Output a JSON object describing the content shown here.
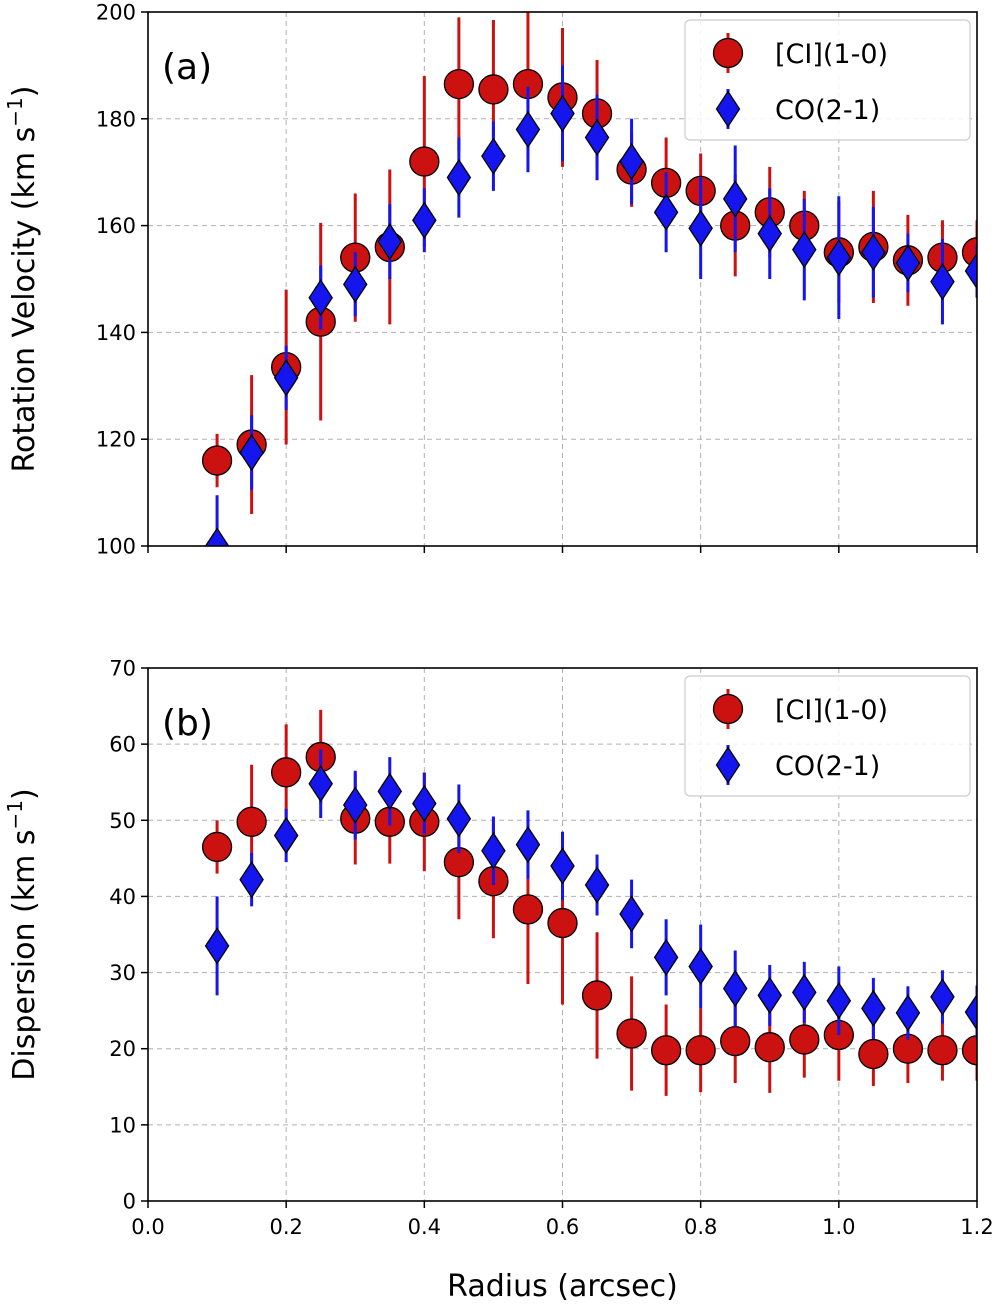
{
  "chart_data": [
    {
      "type": "scatter",
      "panel_label": "(a)",
      "xlabel": "",
      "ylabel": "Rotation Velocity (km s",
      "ylabel_sup": "−1",
      "ylabel_close": ")",
      "xlim": [
        0.0,
        1.2
      ],
      "ylim": [
        100,
        200
      ],
      "xticks": [
        0.0,
        0.2,
        0.4,
        0.6,
        0.8,
        1.0,
        1.2
      ],
      "xtick_labels": [
        "",
        "",
        "",
        "",
        "",
        "",
        ""
      ],
      "yticks": [
        100,
        120,
        140,
        160,
        180,
        200
      ],
      "ytick_labels": [
        "100",
        "120",
        "140",
        "160",
        "180",
        "200"
      ],
      "grid": true,
      "legend_position": "top-right",
      "series": [
        {
          "name": "[CI](1-0)",
          "marker": "circle",
          "color": "#cc1111",
          "x": [
            0.1,
            0.15,
            0.2,
            0.25,
            0.3,
            0.35,
            0.4,
            0.45,
            0.5,
            0.55,
            0.6,
            0.65,
            0.7,
            0.75,
            0.8,
            0.85,
            0.9,
            0.95,
            1.0,
            1.05,
            1.1,
            1.15,
            1.2
          ],
          "y": [
            116,
            119,
            133.5,
            142,
            154,
            156,
            172,
            186.5,
            185.5,
            186.5,
            184,
            181,
            170.5,
            168,
            166.5,
            160,
            162.5,
            160,
            155,
            156,
            153.5,
            154,
            155
          ],
          "err": [
            5,
            13,
            14.5,
            18.5,
            12,
            14.5,
            16,
            12.5,
            13,
            13.5,
            13,
            10,
            7,
            8.5,
            7,
            9.5,
            8.5,
            6.5,
            9.5,
            10.5,
            8.5,
            7,
            6
          ]
        },
        {
          "name": "CO(2-1)",
          "marker": "diamond",
          "color": "#1515ee",
          "x": [
            0.1,
            0.15,
            0.2,
            0.25,
            0.3,
            0.35,
            0.4,
            0.45,
            0.5,
            0.55,
            0.6,
            0.65,
            0.7,
            0.75,
            0.8,
            0.85,
            0.9,
            0.95,
            1.0,
            1.05,
            1.1,
            1.15,
            1.2
          ],
          "y": [
            100,
            117.5,
            131.5,
            146.5,
            149,
            157,
            161,
            169,
            173,
            178,
            181,
            176.5,
            172,
            162.5,
            159.5,
            165,
            158.5,
            155.5,
            154,
            155,
            153,
            149.5,
            151.5
          ],
          "err": [
            9.5,
            7,
            6,
            6,
            6,
            7,
            6,
            7.5,
            6.5,
            8,
            9,
            8,
            8,
            7.5,
            9.5,
            10,
            8.5,
            9.5,
            11.5,
            8.5,
            5.5,
            8,
            5
          ]
        }
      ]
    },
    {
      "type": "scatter",
      "panel_label": "(b)",
      "xlabel": "Radius (arcsec)",
      "ylabel": "Dispersion (km s",
      "ylabel_sup": "−1",
      "ylabel_close": ")",
      "xlim": [
        0.0,
        1.2
      ],
      "ylim": [
        0,
        70
      ],
      "xticks": [
        0.0,
        0.2,
        0.4,
        0.6,
        0.8,
        1.0,
        1.2
      ],
      "xtick_labels": [
        "0.0",
        "0.2",
        "0.4",
        "0.6",
        "0.8",
        "1.0",
        "1.2"
      ],
      "yticks": [
        0,
        10,
        20,
        30,
        40,
        50,
        60,
        70
      ],
      "ytick_labels": [
        "0",
        "10",
        "20",
        "30",
        "40",
        "50",
        "60",
        "70"
      ],
      "grid": true,
      "legend_position": "top-right",
      "series": [
        {
          "name": "[CI](1-0)",
          "marker": "circle",
          "color": "#cc1111",
          "x": [
            0.1,
            0.15,
            0.2,
            0.25,
            0.3,
            0.35,
            0.4,
            0.45,
            0.5,
            0.55,
            0.6,
            0.65,
            0.7,
            0.75,
            0.8,
            0.85,
            0.9,
            0.95,
            1.0,
            1.05,
            1.1,
            1.15,
            1.2
          ],
          "y": [
            46.5,
            49.8,
            56.3,
            58.3,
            50.2,
            49.8,
            49.8,
            44.5,
            42.0,
            38.3,
            36.5,
            27.0,
            22.0,
            19.8,
            19.8,
            21.0,
            20.2,
            21.2,
            21.8,
            19.3,
            20.0,
            19.8,
            19.8
          ],
          "err": [
            3.5,
            7.5,
            6.3,
            6.2,
            6.0,
            5.5,
            6.5,
            7.5,
            7.5,
            9.8,
            10.7,
            8.3,
            7.5,
            6.0,
            5.5,
            5.5,
            6.0,
            5.0,
            6.0,
            4.2,
            4.5,
            4.0,
            4.0
          ]
        },
        {
          "name": "CO(2-1)",
          "marker": "diamond",
          "color": "#1515ee",
          "x": [
            0.1,
            0.15,
            0.2,
            0.25,
            0.3,
            0.35,
            0.4,
            0.45,
            0.5,
            0.55,
            0.6,
            0.65,
            0.7,
            0.75,
            0.8,
            0.85,
            0.9,
            0.95,
            1.0,
            1.05,
            1.1,
            1.15,
            1.2
          ],
          "y": [
            33.5,
            42.2,
            48.0,
            54.8,
            52.0,
            53.8,
            52.2,
            50.2,
            46.0,
            46.8,
            44.0,
            41.5,
            37.7,
            32.0,
            30.8,
            27.9,
            27.0,
            27.4,
            26.3,
            25.3,
            24.7,
            26.8,
            24.8
          ],
          "err": [
            6.5,
            3.5,
            3.5,
            4.5,
            4.5,
            4.5,
            4.0,
            4.5,
            4.5,
            4.5,
            4.5,
            4.0,
            4.5,
            5.0,
            5.5,
            5.0,
            4.0,
            4.0,
            4.5,
            4.0,
            3.5,
            3.5,
            3.5
          ]
        }
      ]
    }
  ]
}
